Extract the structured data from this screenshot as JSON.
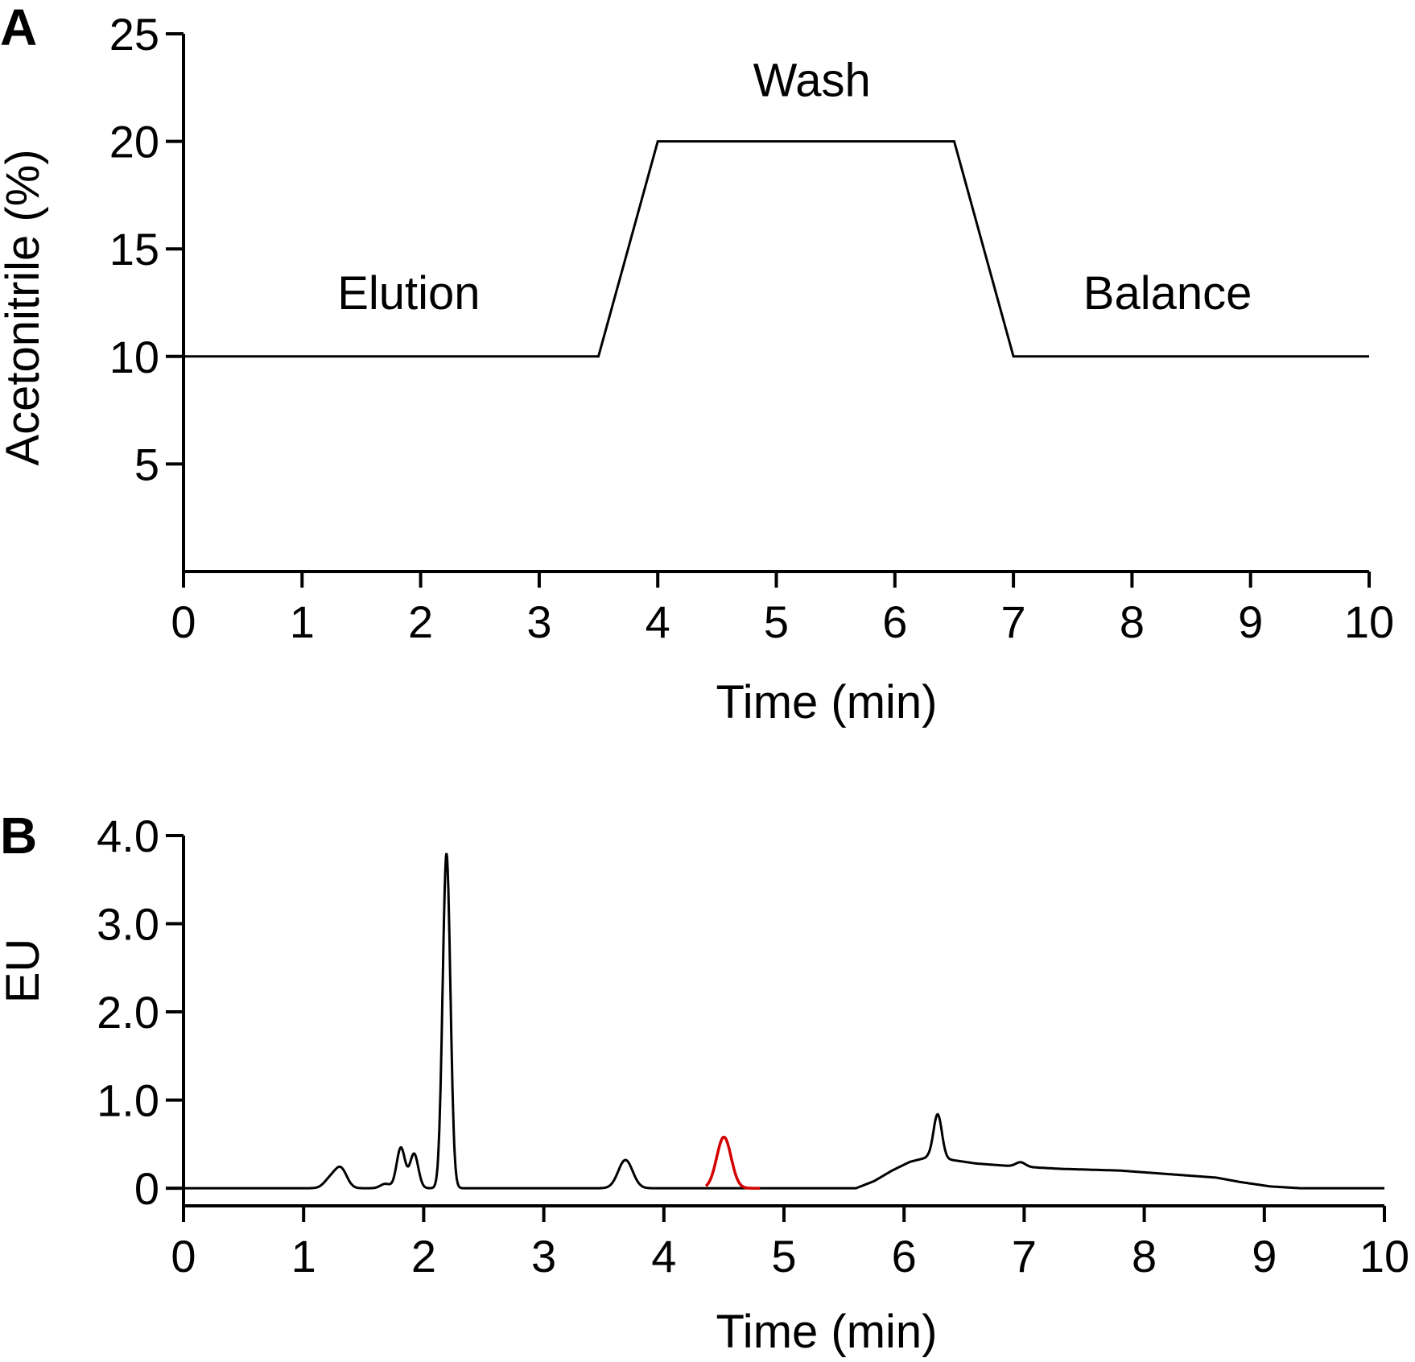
{
  "chart_data": [
    {
      "panel": "A",
      "type": "line",
      "xlabel": "Time (min)",
      "ylabel": "Acetonitrile (%)",
      "xlim": [
        0,
        10
      ],
      "ylim": [
        0,
        25
      ],
      "xticks": [
        0,
        1,
        2,
        3,
        4,
        5,
        6,
        7,
        8,
        9,
        10
      ],
      "yticks": [
        5,
        10,
        15,
        20,
        25
      ],
      "grid": false,
      "line_color": "#000000",
      "series": [
        {
          "x": [
            0,
            3.5,
            4,
            6.5,
            7,
            10
          ],
          "y": [
            10,
            10,
            20,
            20,
            10,
            10
          ]
        }
      ],
      "annotations": [
        {
          "text": "Elution",
          "x": 1.9,
          "y": 12.2
        },
        {
          "text": "Wash",
          "x": 5.3,
          "y": 22.1
        },
        {
          "text": "Balance",
          "x": 8.3,
          "y": 12.2
        }
      ]
    },
    {
      "panel": "B",
      "type": "line",
      "xlabel": "Time (min)",
      "ylabel": "EU",
      "xlim": [
        0,
        10
      ],
      "ylim": [
        -0.2,
        4.0
      ],
      "xticks": [
        0,
        1,
        2,
        3,
        4,
        5,
        6,
        7,
        8,
        9,
        10
      ],
      "yticks": [
        0,
        1.0,
        2.0,
        3.0,
        4.0
      ],
      "ytick_labels": [
        "0",
        "1.0",
        "2.0",
        "3.0",
        "4.0"
      ],
      "grid": false,
      "baseline": 0,
      "series": [
        {
          "color": "#000000",
          "peaks": [
            {
              "center": 1.22,
              "height": 0.1,
              "width": 0.05
            },
            {
              "center": 1.31,
              "height": 0.22,
              "width": 0.05
            },
            {
              "center": 1.68,
              "height": 0.05,
              "width": 0.04
            },
            {
              "center": 1.81,
              "height": 0.46,
              "width": 0.035
            },
            {
              "center": 1.92,
              "height": 0.39,
              "width": 0.035
            },
            {
              "center": 2.19,
              "height": 3.8,
              "width": 0.032
            },
            {
              "center": 3.68,
              "height": 0.32,
              "width": 0.06
            },
            {
              "center": 6.28,
              "height": 0.5,
              "width": 0.035
            },
            {
              "center": 6.97,
              "height": 0.05,
              "width": 0.04
            }
          ],
          "hump": [
            [
              0,
              0
            ],
            [
              5.6,
              0
            ],
            [
              5.75,
              0.08
            ],
            [
              5.9,
              0.2
            ],
            [
              6.05,
              0.3
            ],
            [
              6.2,
              0.35
            ],
            [
              6.4,
              0.32
            ],
            [
              6.6,
              0.28
            ],
            [
              6.9,
              0.25
            ],
            [
              7.3,
              0.22
            ],
            [
              7.8,
              0.2
            ],
            [
              8.2,
              0.16
            ],
            [
              8.6,
              0.12
            ],
            [
              8.8,
              0.07
            ],
            [
              9.05,
              0.02
            ],
            [
              9.3,
              0
            ],
            [
              10,
              0
            ]
          ]
        },
        {
          "color": "#d40000",
          "x_range": [
            4.35,
            4.8
          ],
          "peaks": [
            {
              "center": 4.5,
              "height": 0.58,
              "width": 0.06
            }
          ]
        }
      ]
    }
  ]
}
